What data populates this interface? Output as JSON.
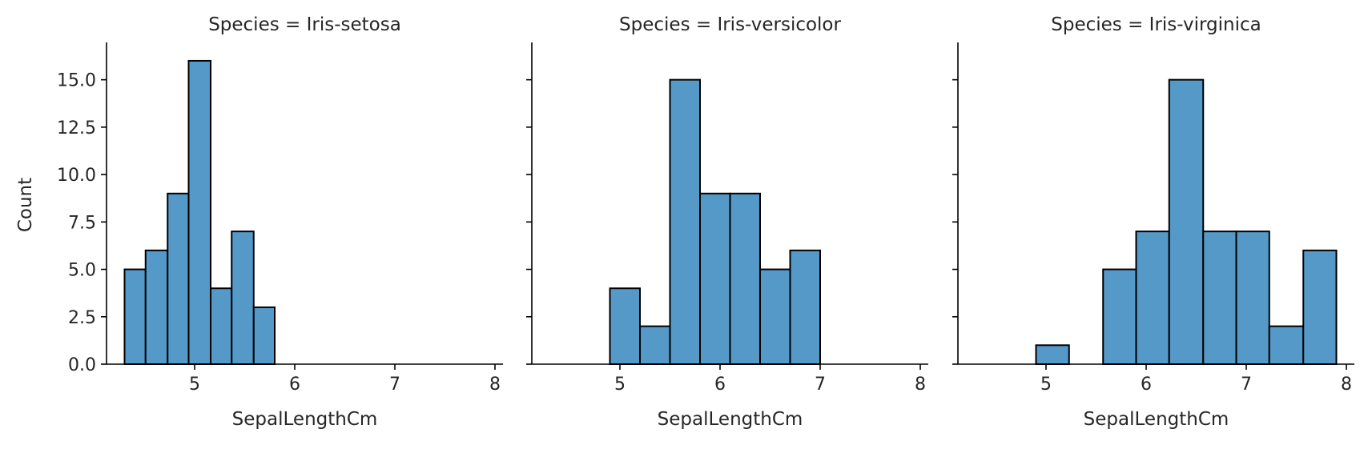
{
  "chart_data": {
    "type": "bar",
    "bar_color": "#5599c8",
    "edge_color": "#000000",
    "xlim": [
      4.12,
      8.08
    ],
    "ylim": [
      0,
      16.8
    ],
    "xticks": [
      5,
      6,
      7,
      8
    ],
    "xtick_labels": [
      "5",
      "6",
      "7",
      "8"
    ],
    "yticks": [
      0,
      2.5,
      5,
      7.5,
      10,
      12.5,
      15
    ],
    "ytick_labels": [
      "0.0",
      "2.5",
      "5.0",
      "7.5",
      "10.0",
      "12.5",
      "15.0"
    ],
    "xlabel": "SepalLengthCm",
    "ylabel": "Count",
    "sharey": true,
    "facets": [
      {
        "title": "Species = Iris-setosa",
        "bins": [
          {
            "x0": 4.3,
            "x1": 4.51,
            "count": 5
          },
          {
            "x0": 4.51,
            "x1": 4.73,
            "count": 6
          },
          {
            "x0": 4.73,
            "x1": 4.94,
            "count": 9
          },
          {
            "x0": 4.94,
            "x1": 5.16,
            "count": 16
          },
          {
            "x0": 5.16,
            "x1": 5.37,
            "count": 4
          },
          {
            "x0": 5.37,
            "x1": 5.59,
            "count": 7
          },
          {
            "x0": 5.59,
            "x1": 5.8,
            "count": 3
          }
        ]
      },
      {
        "title": "Species = Iris-versicolor",
        "bins": [
          {
            "x0": 4.9,
            "x1": 5.2,
            "count": 4
          },
          {
            "x0": 5.2,
            "x1": 5.5,
            "count": 2
          },
          {
            "x0": 5.5,
            "x1": 5.8,
            "count": 15
          },
          {
            "x0": 5.8,
            "x1": 6.1,
            "count": 9
          },
          {
            "x0": 6.1,
            "x1": 6.4,
            "count": 9
          },
          {
            "x0": 6.4,
            "x1": 6.7,
            "count": 5
          },
          {
            "x0": 6.7,
            "x1": 7.0,
            "count": 6
          }
        ]
      },
      {
        "title": "Species = Iris-virginica",
        "bins": [
          {
            "x0": 4.9,
            "x1": 5.23,
            "count": 1
          },
          {
            "x0": 5.23,
            "x1": 5.57,
            "count": 0
          },
          {
            "x0": 5.57,
            "x1": 5.9,
            "count": 5
          },
          {
            "x0": 5.9,
            "x1": 6.23,
            "count": 7
          },
          {
            "x0": 6.23,
            "x1": 6.57,
            "count": 15
          },
          {
            "x0": 6.57,
            "x1": 6.9,
            "count": 7
          },
          {
            "x0": 6.9,
            "x1": 7.23,
            "count": 7
          },
          {
            "x0": 7.23,
            "x1": 7.57,
            "count": 2
          },
          {
            "x0": 7.57,
            "x1": 7.9,
            "count": 6
          }
        ]
      }
    ]
  }
}
